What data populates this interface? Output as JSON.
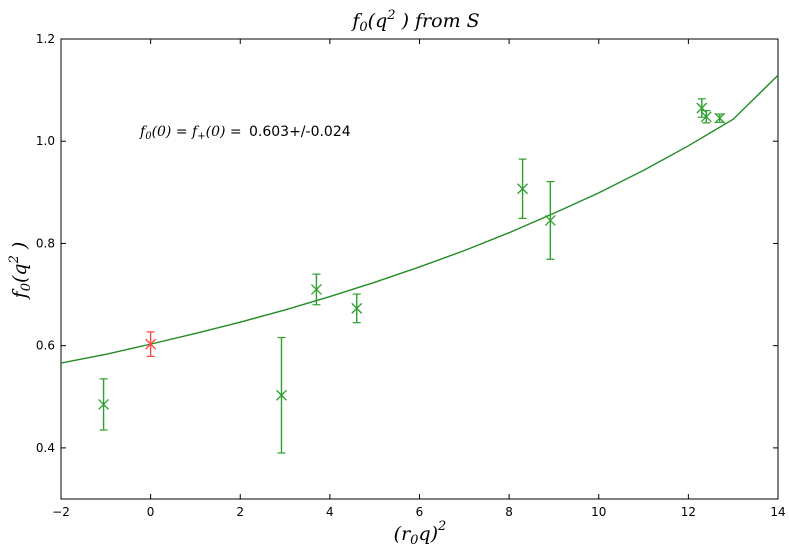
{
  "chart_data": {
    "type": "scatter",
    "title": "f0(q²) from S",
    "xlabel": "(r0 q)²",
    "ylabel": "f0(q²)",
    "xlim": [
      -2,
      14
    ],
    "ylim": [
      0.3,
      1.2
    ],
    "xticks": [
      -2,
      0,
      2,
      4,
      6,
      8,
      10,
      12,
      14
    ],
    "yticks": [
      0.4,
      0.6,
      0.8,
      1.0,
      1.2
    ],
    "ytick_labels": [
      "0.4",
      "0.6",
      "0.8",
      "1.0",
      "1.2"
    ],
    "grid": false,
    "annotation": {
      "math": "f0(0) = f+(0) =",
      "value": "0.603+/-0.024"
    },
    "colors": {
      "data": "#2ca02c",
      "highlight": "#ff4444",
      "fit": "#228b22"
    },
    "points": [
      {
        "x": -1.05,
        "y": 0.485,
        "err": 0.05,
        "highlight": false
      },
      {
        "x": 0.0,
        "y": 0.603,
        "err": 0.024,
        "highlight": true
      },
      {
        "x": 2.92,
        "y": 0.503,
        "err": 0.113,
        "highlight": false
      },
      {
        "x": 3.7,
        "y": 0.71,
        "err": 0.03,
        "highlight": false
      },
      {
        "x": 4.6,
        "y": 0.673,
        "err": 0.028,
        "highlight": false
      },
      {
        "x": 8.3,
        "y": 0.907,
        "err": 0.058,
        "highlight": false
      },
      {
        "x": 8.92,
        "y": 0.845,
        "err": 0.076,
        "highlight": false
      },
      {
        "x": 12.3,
        "y": 1.065,
        "err": 0.018,
        "highlight": false
      },
      {
        "x": 12.4,
        "y": 1.048,
        "err": 0.012,
        "highlight": false
      },
      {
        "x": 12.7,
        "y": 1.045,
        "err": 0.008,
        "highlight": false
      }
    ],
    "fit_curve": {
      "x": [
        -2,
        -1,
        0,
        1,
        2,
        3,
        4,
        5,
        6,
        7,
        8,
        9,
        10,
        11,
        12,
        13,
        14
      ],
      "y": [
        0.566,
        0.583,
        0.603,
        0.624,
        0.646,
        0.67,
        0.696,
        0.724,
        0.754,
        0.786,
        0.821,
        0.859,
        0.899,
        0.943,
        0.991,
        1.043,
        1.129
      ]
    }
  }
}
